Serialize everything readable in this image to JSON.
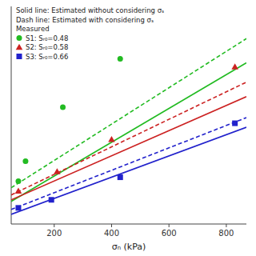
{
  "chart_data": {
    "type": "scatter",
    "xlabel": "σₙ (kPa)",
    "xlim": [
      50,
      870
    ],
    "ylim": [
      0.01,
      0.28
    ],
    "xticks": [
      200,
      400,
      600,
      800
    ],
    "yticks": [],
    "tick_labels": "x",
    "grid": false,
    "legend": "upper left",
    "annotations": [
      "Solid line: Estimated without considering σₛ",
      "Dash line: Estimated with considering σₛ",
      "Measured"
    ],
    "series": [
      {
        "type": "line",
        "line_style": "solid",
        "color": "#22bb22",
        "x": [
          50,
          870
        ],
        "values": [
          0.038,
          0.21
        ]
      },
      {
        "type": "line",
        "line_style": "solid",
        "color": "#cc2222",
        "x": [
          50,
          870
        ],
        "values": [
          0.04,
          0.168
        ]
      },
      {
        "type": "line",
        "line_style": "solid",
        "color": "#2222cc",
        "x": [
          50,
          870
        ],
        "values": [
          0.022,
          0.13
        ]
      },
      {
        "type": "line",
        "line_style": "dashed",
        "color": "#22bb22",
        "x": [
          50,
          870
        ],
        "values": [
          0.055,
          0.24
        ]
      },
      {
        "type": "line",
        "line_style": "dashed",
        "color": "#cc2222",
        "x": [
          50,
          870
        ],
        "values": [
          0.046,
          0.186
        ]
      },
      {
        "type": "line",
        "line_style": "dashed",
        "color": "#2222cc",
        "x": [
          50,
          870
        ],
        "values": [
          0.028,
          0.142
        ]
      },
      {
        "type": "scatter",
        "name": "S1: Sᵣ₀=0.48",
        "marker": "circle",
        "color": "#22bb22",
        "x": [
          75,
          100,
          230,
          430
        ],
        "values": [
          0.063,
          0.088,
          0.155,
          0.215
        ]
      },
      {
        "type": "scatter",
        "name": "S2: Sᵣ₀=0.58",
        "marker": "triangle",
        "color": "#cc2222",
        "x": [
          75,
          210,
          400,
          830
        ],
        "values": [
          0.051,
          0.075,
          0.115,
          0.205
        ]
      },
      {
        "type": "scatter",
        "name": "S3: Sᵣ₀=0.66",
        "marker": "square",
        "color": "#2222cc",
        "x": [
          75,
          190,
          430,
          830
        ],
        "values": [
          0.03,
          0.04,
          0.068,
          0.135
        ]
      }
    ]
  }
}
